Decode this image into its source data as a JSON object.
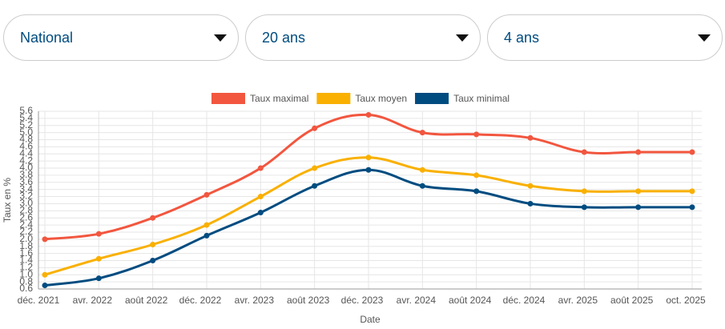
{
  "dropdowns": [
    {
      "label": "National"
    },
    {
      "label": "20 ans"
    },
    {
      "label": "4 ans"
    }
  ],
  "chart_data": {
    "type": "line",
    "x_label": "Date",
    "y_label": "Taux en %",
    "categories": [
      "déc. 2021",
      "avr. 2022",
      "août 2022",
      "déc. 2022",
      "avr. 2023",
      "août 2023",
      "déc. 2023",
      "avr. 2024",
      "août 2024",
      "déc. 2024",
      "avr. 2025",
      "août 2025",
      "oct. 2025"
    ],
    "series": [
      {
        "name": "Taux maximal",
        "color": "#f2563f",
        "values": [
          2.0,
          2.15,
          2.6,
          3.25,
          4.0,
          5.12,
          5.5,
          5.0,
          4.95,
          4.85,
          4.45,
          4.45,
          4.45
        ]
      },
      {
        "name": "Taux moyen",
        "color": "#f9b000",
        "values": [
          1.0,
          1.45,
          1.85,
          2.4,
          3.2,
          4.0,
          4.3,
          3.95,
          3.8,
          3.5,
          3.35,
          3.35,
          3.35
        ]
      },
      {
        "name": "Taux minimal",
        "color": "#004c80",
        "values": [
          0.7,
          0.9,
          1.4,
          2.1,
          2.75,
          3.5,
          3.95,
          3.5,
          3.35,
          3.0,
          2.9,
          2.9,
          2.9
        ]
      }
    ],
    "ylim": [
      0.6,
      5.6
    ],
    "yticks": [
      0.6,
      0.8,
      {
        "value": 1,
        "label": "1.0"
      },
      1.2,
      1.4,
      1.6,
      1.8,
      {
        "value": 2,
        "label": "2.0"
      },
      2.2,
      2.4,
      2.6,
      2.8,
      {
        "value": 3,
        "label": "3.0"
      },
      3.2,
      3.4,
      3.6,
      3.8,
      {
        "value": 4,
        "label": "4.0"
      },
      4.2,
      4.4,
      4.6,
      4.8,
      {
        "value": 5,
        "label": "5.0"
      },
      5.2,
      5.4,
      5.6
    ],
    "grid": true,
    "legend": "top"
  }
}
